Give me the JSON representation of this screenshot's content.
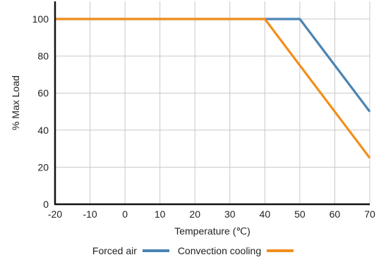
{
  "chart_data": {
    "type": "line",
    "title": "",
    "xlabel": "Temperature (℃)",
    "ylabel": "% Max Load",
    "xlim": [
      -20,
      70
    ],
    "ylim": [
      0,
      100
    ],
    "x_ticks": [
      -20,
      -10,
      0,
      10,
      20,
      30,
      40,
      50,
      60,
      70
    ],
    "y_ticks": [
      0,
      20,
      40,
      60,
      80,
      100
    ],
    "grid": true,
    "legend_position": "bottom",
    "series": [
      {
        "name": "Forced air",
        "color": "#4a84b3",
        "points": [
          [
            -20,
            100
          ],
          [
            50,
            100
          ],
          [
            70,
            50
          ]
        ]
      },
      {
        "name": "Convection cooling",
        "color": "#f28e1c",
        "points": [
          [
            -20,
            100
          ],
          [
            40,
            100
          ],
          [
            70,
            25
          ]
        ]
      }
    ]
  }
}
